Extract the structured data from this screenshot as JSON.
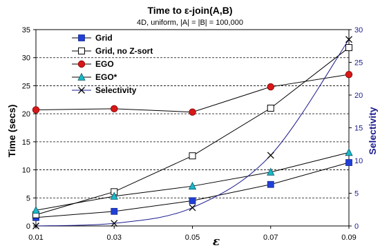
{
  "chart_data": {
    "type": "line",
    "title": "Time to ε-join(A,B)",
    "subtitle": "4D, uniform, |A| = |B| = 100,000",
    "xlabel": "ε",
    "ylabel": "Time (secs)",
    "ylabel_right": "Selectivity",
    "x": [
      0.01,
      0.03,
      0.05,
      0.07,
      0.09
    ],
    "x_tick_labels": [
      "0.01",
      "0.03",
      "0.05",
      "0.07",
      "0.09"
    ],
    "xlim": [
      0.01,
      0.09
    ],
    "ylim": [
      0,
      35
    ],
    "y_ticks": [
      0,
      5,
      10,
      15,
      20,
      25,
      30,
      35
    ],
    "ylim_right": [
      0,
      30
    ],
    "y_ticks_right": [
      0,
      5,
      10,
      15,
      20,
      25,
      30
    ],
    "grid": "horizontal dashed",
    "legend_position": "top-left",
    "series": [
      {
        "name": "Grid",
        "axis": "left",
        "marker": "filled-square",
        "color": "#1f3fd6",
        "values": [
          1.5,
          2.6,
          4.5,
          7.4,
          11.3
        ]
      },
      {
        "name": "Grid, no Z-sort",
        "axis": "left",
        "marker": "open-square",
        "color": "#000000",
        "values": [
          2.0,
          6.1,
          12.5,
          21.0,
          31.8
        ]
      },
      {
        "name": "EGO",
        "axis": "left",
        "marker": "filled-circle",
        "color": "#d81818",
        "values": [
          20.7,
          20.9,
          20.3,
          24.8,
          27.0
        ]
      },
      {
        "name": "EGO*",
        "axis": "left",
        "marker": "filled-triangle",
        "color": "#19b8c9",
        "values": [
          2.8,
          5.3,
          7.1,
          9.6,
          13.1
        ]
      },
      {
        "name": "Selectivity",
        "axis": "right",
        "marker": "x",
        "color": "#000000",
        "curve_color": "#1a1a8c",
        "values": [
          0.0,
          0.4,
          2.8,
          10.8,
          28.5
        ]
      }
    ]
  }
}
